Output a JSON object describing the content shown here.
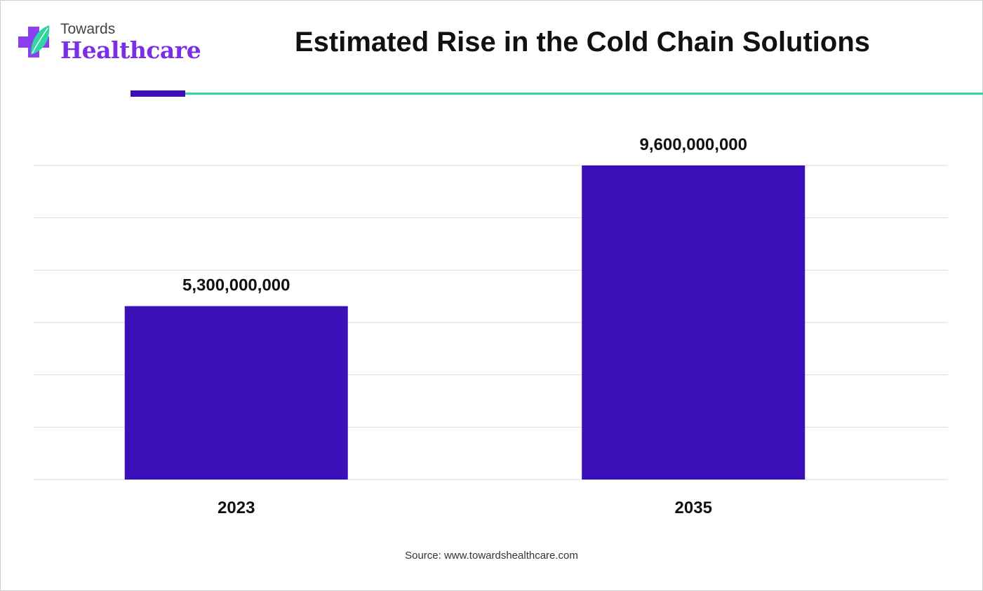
{
  "brand": {
    "top": "Towards",
    "main": "Healthcare",
    "icon": "medical-cross-leaf-icon"
  },
  "colors": {
    "bar": "#3c10b8",
    "accent_green": "#2fd6a0",
    "accent_purple": "#3c10b8",
    "brand_purple": "#7a2ee6",
    "grid": "#d9d9d9"
  },
  "source": "Source: www.towardshealthcare.com",
  "chart_data": {
    "type": "bar",
    "title": "Estimated Rise in the Cold Chain Solutions",
    "categories": [
      "2023",
      "2035"
    ],
    "values": [
      5300000000,
      9600000000
    ],
    "data_labels": [
      "5,300,000,000",
      "9,600,000,000"
    ],
    "xlabel": "",
    "ylabel": "",
    "ylim": [
      0,
      9600000000
    ],
    "grid": true,
    "legend": "none"
  }
}
